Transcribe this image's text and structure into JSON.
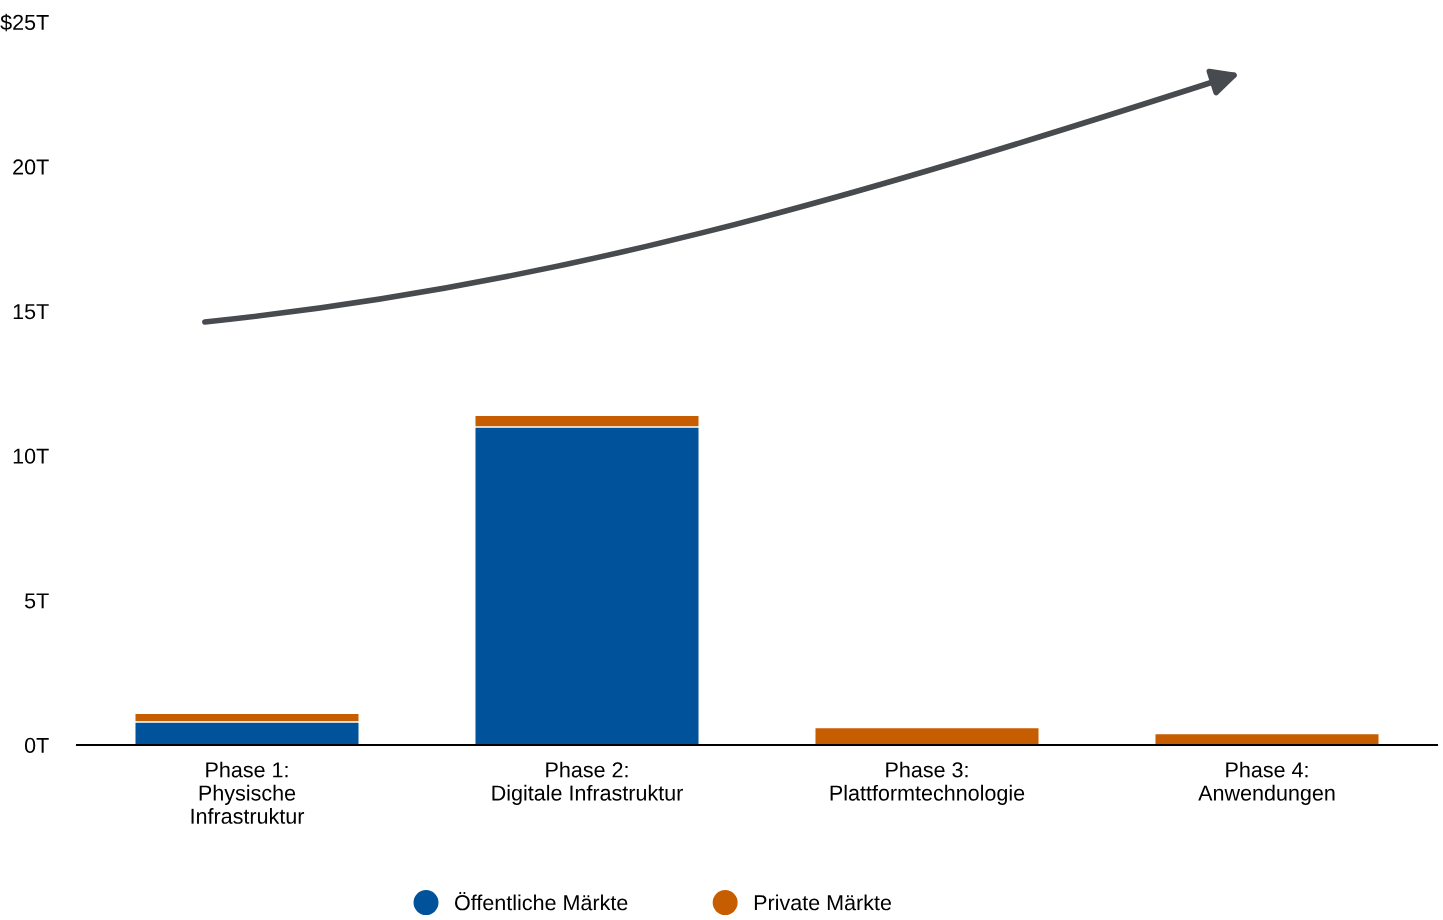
{
  "chart_data": {
    "type": "bar",
    "stacked": true,
    "categories": [
      "Phase 1:\nPhysische\nInfrastruktur",
      "Phase 2:\nDigitale Infrastruktur",
      "Phase 3:\nPlattformtechnologie",
      "Phase 4:\nAnwendungen"
    ],
    "series": [
      {
        "name": "Öffentliche Märkte",
        "color": "#00539b",
        "values": [
          0.8,
          11.0,
          0,
          0
        ]
      },
      {
        "name": "Private Märkte",
        "color": "#c65d00",
        "values": [
          0.3,
          0.4,
          0.6,
          0.4
        ]
      }
    ],
    "ylim": [
      0,
      25
    ],
    "yticks": [
      {
        "value": 0,
        "label": "0T"
      },
      {
        "value": 5,
        "label": "5T"
      },
      {
        "value": 10,
        "label": "10T"
      },
      {
        "value": 15,
        "label": "15T"
      },
      {
        "value": 20,
        "label": "20T"
      },
      {
        "value": 25,
        "label": "$25T"
      }
    ],
    "grid": false,
    "legend": "bottom"
  }
}
